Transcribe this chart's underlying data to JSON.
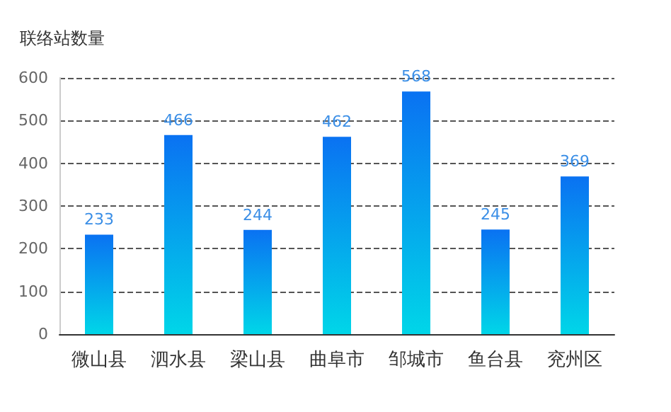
{
  "chart_data": {
    "type": "bar",
    "ylabel": "联络站数量",
    "categories": [
      "微山县",
      "泗水县",
      "梁山县",
      "曲阜市",
      "邹城市",
      "鱼台县",
      "兖州区"
    ],
    "values": [
      233,
      466,
      244,
      462,
      568,
      245,
      369
    ],
    "color": "#0a72f2",
    "ylim": [
      0,
      600
    ],
    "yticks": [
      0,
      100,
      200,
      300,
      400,
      500,
      600
    ],
    "grid": "y",
    "data_labels": true
  }
}
